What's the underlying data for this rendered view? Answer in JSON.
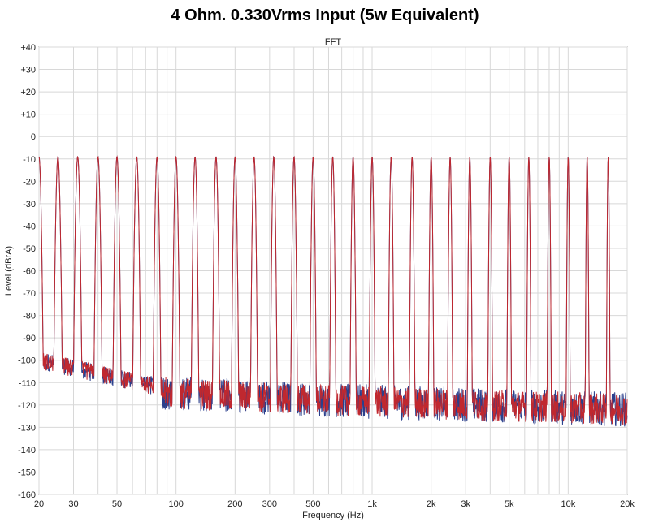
{
  "title": "4 Ohm. 0.330Vrms Input (5w Equivalent)",
  "chart_data": {
    "type": "line",
    "subtitle": "FFT",
    "xlabel": "Frequency (Hz)",
    "ylabel": "Level (dBrA)",
    "x_scale": "log",
    "xlim": [
      20,
      20000
    ],
    "ylim": [
      -160,
      40
    ],
    "grid": true,
    "x_tick_labels": [
      "20",
      "30",
      "50",
      "100",
      "200",
      "300",
      "500",
      "1k",
      "2k",
      "3k",
      "5k",
      "10k",
      "20k"
    ],
    "x_tick_values": [
      20,
      30,
      50,
      100,
      200,
      300,
      500,
      1000,
      2000,
      3000,
      5000,
      10000,
      20000
    ],
    "y_tick_labels": [
      "+40",
      "+30",
      "+20",
      "+10",
      "0",
      "-10",
      "-20",
      "-30",
      "-40",
      "-50",
      "-60",
      "-70",
      "-80",
      "-90",
      "-100",
      "-110",
      "-120",
      "-130",
      "-140",
      "-150",
      "-160"
    ],
    "y_tick_values": [
      40,
      30,
      20,
      10,
      0,
      -10,
      -20,
      -30,
      -40,
      -50,
      -60,
      -70,
      -80,
      -90,
      -100,
      -110,
      -120,
      -130,
      -140,
      -150,
      -160
    ],
    "tone_frequencies_hz": [
      20,
      25,
      31.5,
      40,
      50,
      63,
      80,
      100,
      125,
      160,
      200,
      250,
      315,
      400,
      500,
      630,
      800,
      1000,
      1250,
      1600,
      2000,
      2500,
      3150,
      4000,
      5000,
      6300,
      8000,
      10000,
      12500,
      16000
    ],
    "tone_level_dbra": -9,
    "noise_floor_dbra": {
      "start": -112,
      "mid": -118,
      "end": -122
    },
    "series": [
      {
        "color": "#2b3f8c"
      },
      {
        "color": "#c0282f"
      }
    ],
    "plot_background": "#ffffff",
    "grid_color": "#d8d8d8"
  }
}
